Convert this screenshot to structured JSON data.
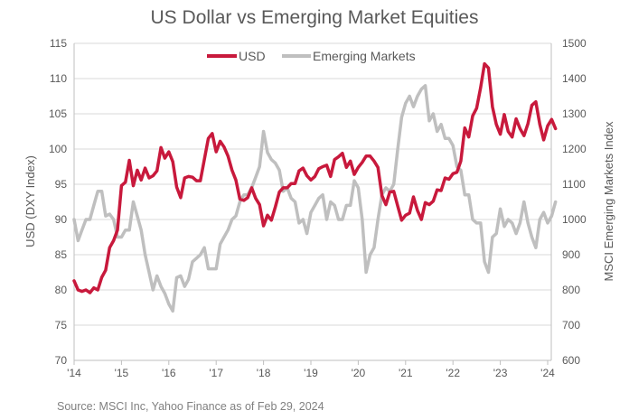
{
  "chart_data": {
    "type": "line",
    "title": "US Dollar vs Emerging Market Equities",
    "source": "Source: MSCI Inc, Yahoo Finance as of Feb 29, 2024",
    "x_tick_labels": [
      "'14",
      "'15",
      "'16",
      "'17",
      "'18",
      "'19",
      "'20",
      "'21",
      "'22",
      "'23",
      "'24"
    ],
    "x_start_year": 2014,
    "x_frequency": "monthly",
    "y_left": {
      "label": "USD (DXY Index)",
      "range": [
        70,
        115
      ],
      "ticks": [
        70,
        75,
        80,
        85,
        90,
        95,
        100,
        105,
        110,
        115
      ]
    },
    "y_right": {
      "label": "MSCI Emerging Markets Index",
      "range": [
        600,
        1500
      ],
      "ticks": [
        600,
        700,
        800,
        900,
        1000,
        1100,
        1200,
        1300,
        1400,
        1500
      ]
    },
    "grid": true,
    "legend_position": "top-center",
    "series": [
      {
        "name": "USD",
        "axis": "left",
        "color": "#c8193c",
        "values": [
          81.3,
          80.0,
          79.8,
          80.0,
          79.6,
          80.3,
          80.0,
          81.8,
          82.8,
          86.0,
          87.0,
          88.5,
          94.8,
          95.3,
          98.4,
          94.8,
          97.0,
          95.6,
          97.3,
          95.9,
          96.2,
          96.9,
          100.2,
          98.7,
          99.6,
          98.2,
          94.6,
          93.1,
          95.9,
          96.1,
          96.0,
          95.5,
          95.5,
          98.5,
          101.5,
          102.2,
          99.6,
          101.1,
          100.3,
          99.0,
          97.0,
          95.6,
          92.9,
          92.7,
          93.1,
          94.5,
          93.0,
          92.1,
          89.1,
          90.6,
          89.9,
          91.8,
          93.9,
          94.5,
          94.5,
          95.1,
          95.1,
          96.9,
          97.3,
          96.2,
          95.6,
          96.1,
          97.2,
          97.5,
          97.7,
          96.1,
          98.5,
          98.9,
          99.4,
          97.4,
          98.3,
          96.4,
          97.4,
          98.1,
          99.0,
          99.0,
          98.3,
          97.4,
          93.4,
          92.1,
          93.9,
          94.0,
          91.9,
          89.9,
          90.6,
          90.9,
          93.2,
          91.3,
          90.0,
          92.4,
          92.1,
          92.6,
          94.2,
          94.1,
          95.9,
          95.7,
          96.5,
          96.7,
          98.3,
          103.0,
          101.7,
          104.7,
          105.8,
          108.7,
          112.1,
          111.5,
          106.0,
          103.5,
          102.1,
          104.9,
          102.5,
          101.7,
          104.3,
          102.9,
          101.9,
          103.6,
          106.2,
          106.7,
          103.5,
          101.3,
          103.3,
          104.2,
          102.9
        ]
      },
      {
        "name": "Emerging Markets",
        "axis": "right",
        "color": "#bfbfbf",
        "values": [
          1000,
          940,
          970,
          1000,
          1000,
          1040,
          1080,
          1080,
          1010,
          1015,
          1000,
          950,
          950,
          970,
          970,
          1050,
          1010,
          970,
          900,
          850,
          800,
          840,
          810,
          790,
          760,
          740,
          835,
          840,
          810,
          830,
          880,
          890,
          900,
          920,
          860,
          860,
          860,
          930,
          950,
          970,
          1000,
          1010,
          1050,
          1070,
          1070,
          1090,
          1120,
          1150,
          1250,
          1190,
          1170,
          1160,
          1140,
          1080,
          1090,
          1060,
          1050,
          990,
          1000,
          960,
          1020,
          1040,
          1060,
          1070,
          1000,
          1050,
          1040,
          1000,
          1000,
          1040,
          1040,
          1110,
          1090,
          1000,
          850,
          900,
          920,
          1000,
          1070,
          1090,
          1080,
          1100,
          1200,
          1290,
          1330,
          1350,
          1320,
          1350,
          1370,
          1380,
          1280,
          1300,
          1250,
          1270,
          1230,
          1230,
          1210,
          1150,
          1140,
          1070,
          1070,
          1000,
          990,
          990,
          880,
          850,
          950,
          960,
          1030,
          980,
          1000,
          990,
          960,
          990,
          1050,
          990,
          950,
          920,
          1000,
          1020,
          990,
          1010,
          1050
        ]
      }
    ]
  }
}
